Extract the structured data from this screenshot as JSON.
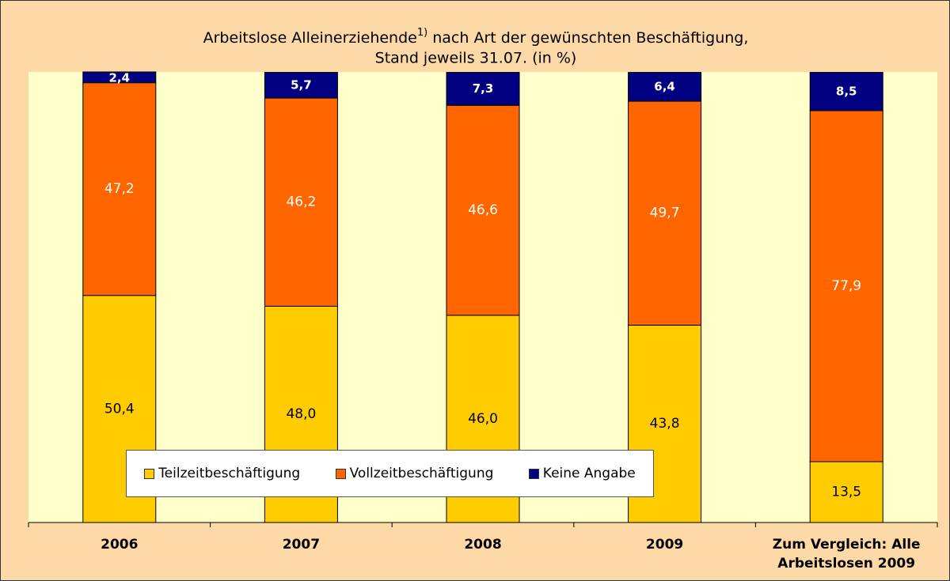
{
  "chart_data": {
    "type": "stacked_bar",
    "title": {
      "text": "Arbeitslose Alleinerziehende",
      "footnote_mark": "1)",
      "rest": " nach Art der gewünschten Beschäftigung,"
    },
    "subtitle": "Stand jeweils 31.07.  (in %)",
    "categories": [
      "2006",
      "2007",
      "2008",
      "2009",
      "Zum Vergleich: Alle Arbeitslosen 2009"
    ],
    "series": [
      {
        "name": "Teilzeitbeschäftigung",
        "color": "#FFCC00",
        "values": [
          50.4,
          48.0,
          46.0,
          43.8,
          13.5
        ],
        "value_labels": [
          "50,4",
          "48,0",
          "46,0",
          "43,8",
          "13,5"
        ]
      },
      {
        "name": "Vollzeitbeschäftigung",
        "color": "#FF6600",
        "values": [
          47.2,
          46.2,
          46.6,
          49.7,
          77.9
        ],
        "value_labels": [
          "47,2",
          "46,2",
          "46,6",
          "49,7",
          "77,9"
        ]
      },
      {
        "name": "Keine Angabe",
        "color": "#000080",
        "values": [
          2.4,
          5.7,
          7.3,
          6.4,
          8.5
        ],
        "value_labels": [
          "2,4",
          "5,7",
          "7,3",
          "6,4",
          "8,5"
        ]
      }
    ],
    "ylim": [
      0,
      100
    ],
    "legend": "bottom-left"
  }
}
